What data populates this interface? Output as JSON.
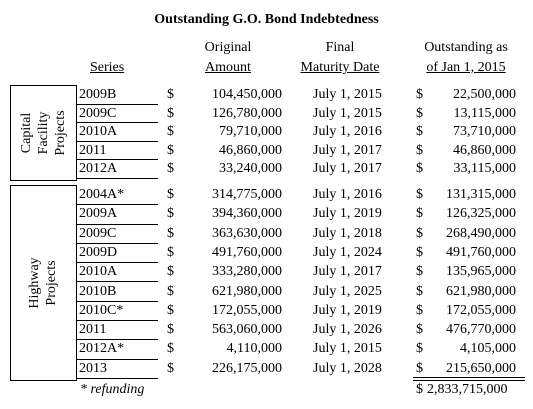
{
  "title": "Outstanding G.O. Bond Indebtedness",
  "header": {
    "series": "Series",
    "original": [
      "Original",
      "Amount"
    ],
    "maturity": [
      "Final",
      "Maturity Date"
    ],
    "outstanding": [
      "Outstanding as",
      "of Jan 1, 2015"
    ]
  },
  "groups": [
    {
      "label": [
        "Capital",
        "Facility",
        "Projects"
      ],
      "rows": [
        [
          "2009B",
          "$",
          "104,450,000",
          "July 1, 2015",
          "$",
          "22,500,000"
        ],
        [
          "2009C",
          "$",
          "126,780,000",
          "July 1, 2015",
          "$",
          "13,115,000"
        ],
        [
          "2010A",
          "$",
          "79,710,000",
          "July 1, 2016",
          "$",
          "73,710,000"
        ],
        [
          "2011",
          "$",
          "46,860,000",
          "July 1, 2017",
          "$",
          "46,860,000"
        ],
        [
          "2012A",
          "$",
          "33,240,000",
          "July 1, 2017",
          "$",
          "33,115,000"
        ]
      ]
    },
    {
      "label": [
        "Highway",
        "Projects"
      ],
      "rows": [
        [
          "2004A*",
          "$",
          "314,775,000",
          "July 1, 2016",
          "$",
          "131,315,000"
        ],
        [
          "2009A",
          "$",
          "394,360,000",
          "July 1, 2019",
          "$",
          "126,325,000"
        ],
        [
          "2009C",
          "$",
          "363,630,000",
          "July 1, 2018",
          "$",
          "268,490,000"
        ],
        [
          "2009D",
          "$",
          "491,760,000",
          "July 1, 2024",
          "$",
          "491,760,000"
        ],
        [
          "2010A",
          "$",
          "333,280,000",
          "July 1, 2017",
          "$",
          "135,965,000"
        ],
        [
          "2010B",
          "$",
          "621,980,000",
          "July 1, 2025",
          "$",
          "621,980,000"
        ],
        [
          "2010C*",
          "$",
          "172,055,000",
          "July 1, 2019",
          "$",
          "172,055,000"
        ],
        [
          "2011",
          "$",
          "563,060,000",
          "July 1, 2026",
          "$",
          "476,770,000"
        ],
        [
          "2012A*",
          "$",
          "4,110,000",
          "July 1, 2015",
          "$",
          "4,105,000"
        ],
        [
          "2013",
          "$",
          "226,175,000",
          "July 1, 2028",
          "$",
          "215,650,000"
        ]
      ]
    }
  ],
  "footnote": "* refunding",
  "total": [
    "$",
    "2,833,715,000"
  ]
}
